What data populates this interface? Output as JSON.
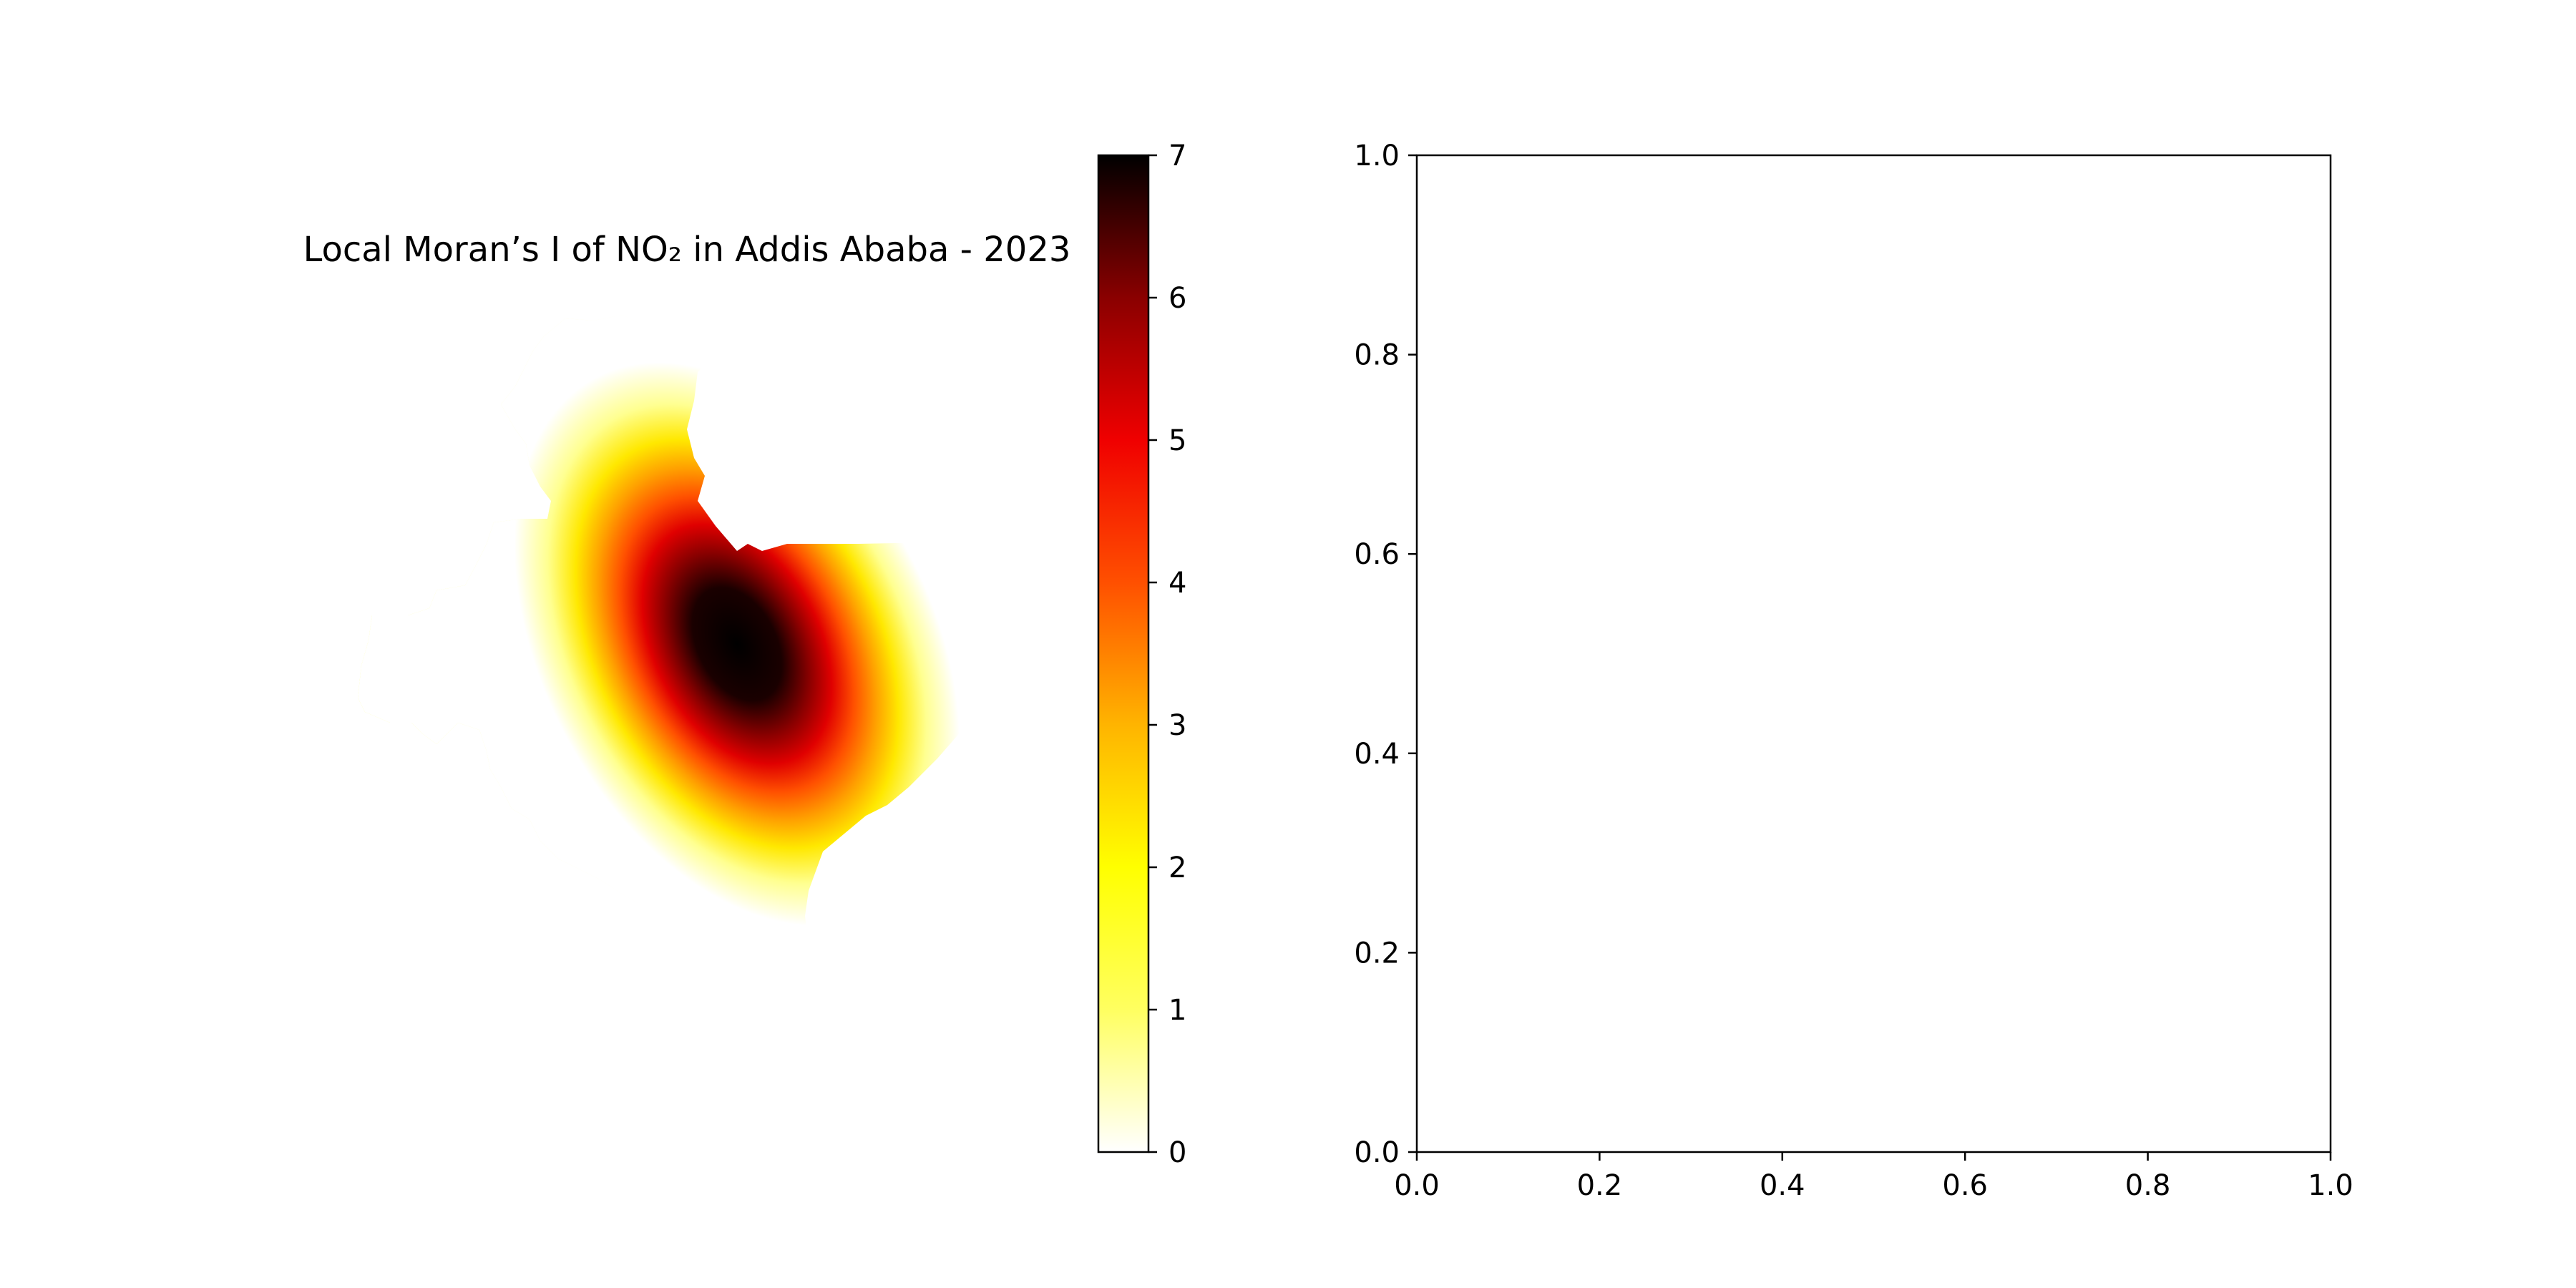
{
  "chart_data": [
    {
      "type": "heatmap",
      "title": "Local Moran’s I of NO₂ in Addis Ababa - 2023",
      "axis": "off",
      "colormap": "hot_r",
      "colorbar": {
        "vmin": 0,
        "vmax": 7,
        "ticks": [
          0,
          1,
          2,
          3,
          4,
          5,
          6,
          7
        ],
        "tick_labels": [
          "0",
          "1",
          "2",
          "3",
          "4",
          "5",
          "6",
          "7"
        ],
        "colors": [
          "#ffffff",
          "#ffff60",
          "#ffff00",
          "#ffb400",
          "#ff5000",
          "#f00000",
          "#8a0000",
          "#000000"
        ]
      },
      "hotspot": {
        "peak_value": 7,
        "location": "center-east"
      }
    },
    {
      "type": "scatter",
      "series": [],
      "xlim": [
        0.0,
        1.0
      ],
      "ylim": [
        0.0,
        1.0
      ],
      "x_ticks": [
        0.0,
        0.2,
        0.4,
        0.6,
        0.8,
        1.0
      ],
      "y_ticks": [
        0.0,
        0.2,
        0.4,
        0.6,
        0.8,
        1.0
      ],
      "x_tick_labels": [
        "0.0",
        "0.2",
        "0.4",
        "0.6",
        "0.8",
        "1.0"
      ],
      "y_tick_labels": [
        "0.0",
        "0.2",
        "0.4",
        "0.6",
        "0.8",
        "1.0"
      ],
      "grid": false
    }
  ]
}
